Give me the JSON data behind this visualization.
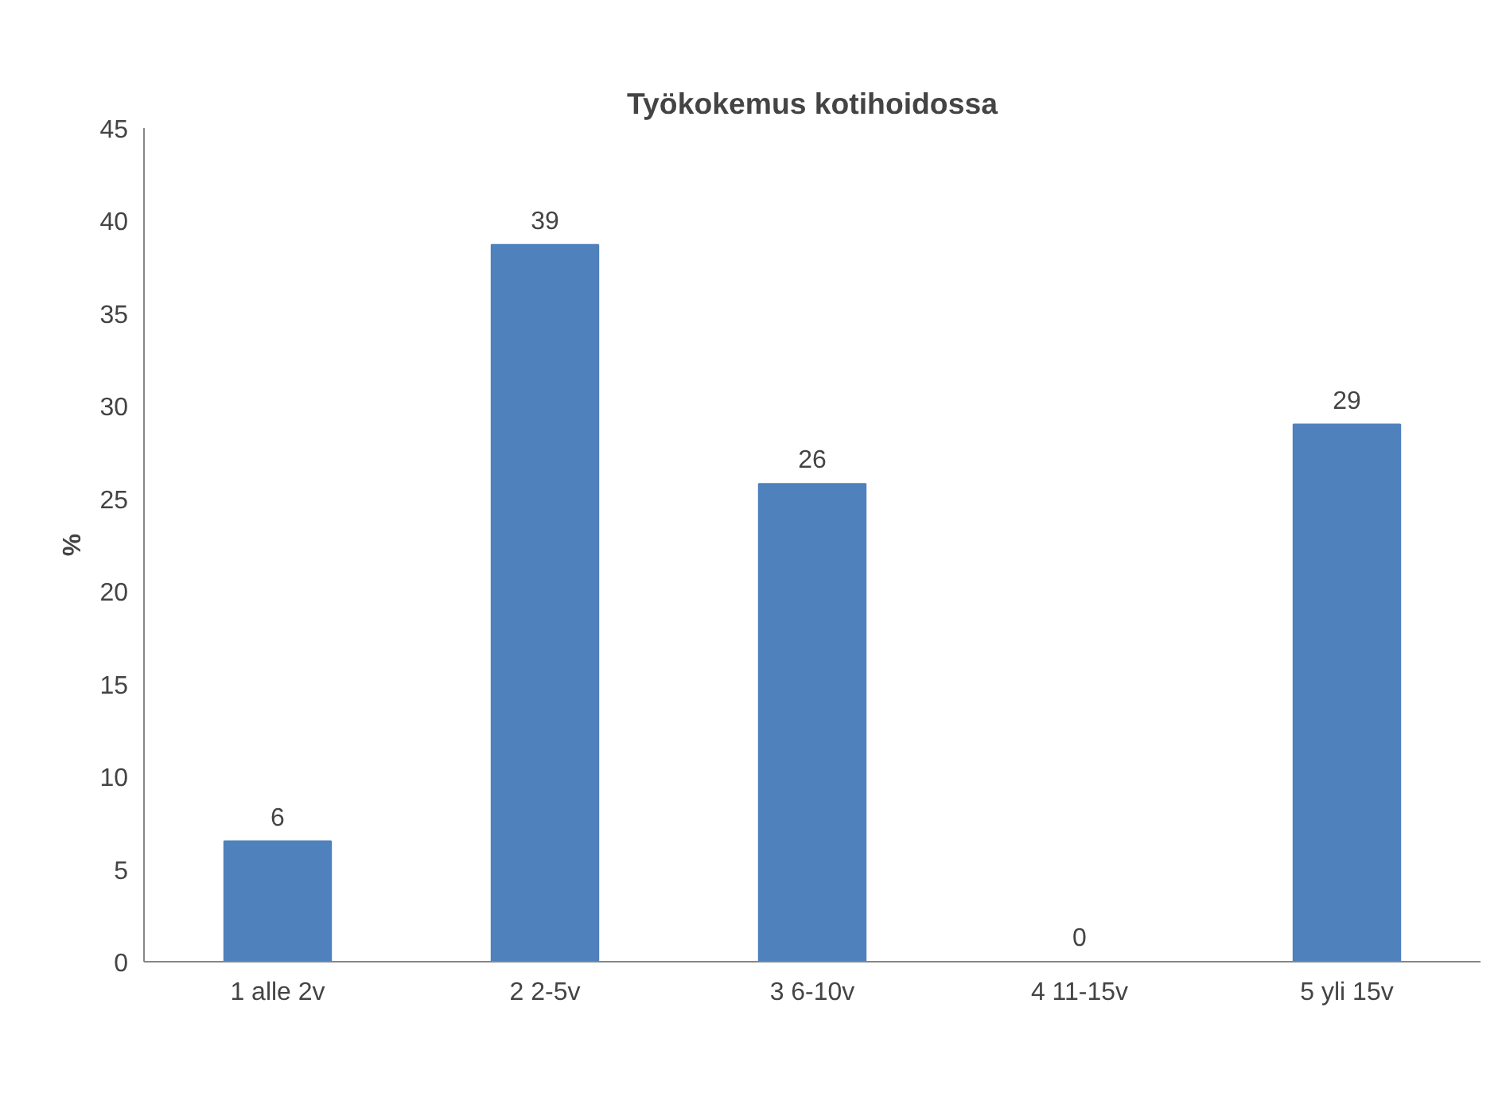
{
  "chart_data": {
    "type": "bar",
    "title": "Työkokemus kotihoidossa",
    "ylabel": "%",
    "categories": [
      "1 alle 2v",
      "2 2-5v",
      "3 6-10v",
      "4 11-15v",
      "5 yli 15v"
    ],
    "values": [
      6.5,
      38.7,
      25.8,
      0,
      29.0
    ],
    "value_labels": [
      "6",
      "39",
      "26",
      "0",
      "29"
    ],
    "color": "#4f81bd",
    "ylim": [
      0,
      45
    ],
    "yticks": [
      0,
      5,
      10,
      15,
      20,
      25,
      30,
      35,
      40,
      45
    ],
    "grid": false
  }
}
